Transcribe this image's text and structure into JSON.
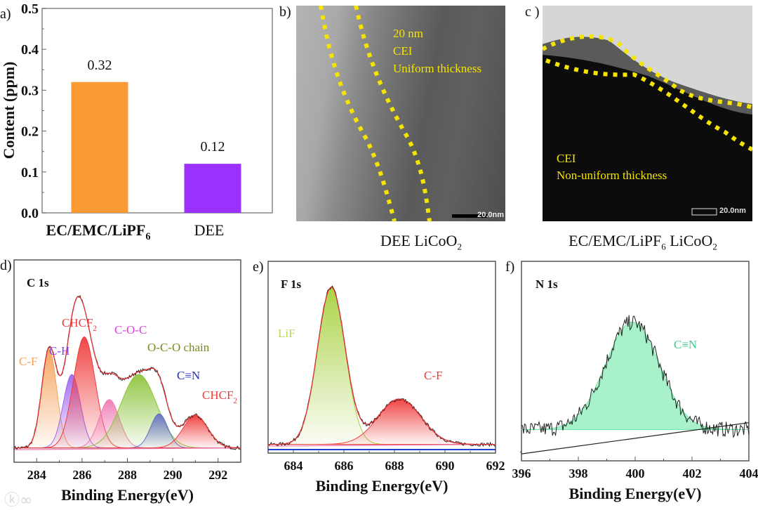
{
  "chart_data": [
    {
      "panel": "a)",
      "type": "bar",
      "categories": [
        "EC/EMC/LiPF6",
        "DEE"
      ],
      "category_labels": [
        {
          "main": "EC/EMC/LiPF",
          "sub": "6"
        },
        {
          "main": "DEE",
          "sub": ""
        }
      ],
      "values": [
        0.32,
        0.12
      ],
      "data_labels": [
        "0.32",
        "0.12"
      ],
      "colors": [
        "#fb9a33",
        "#9b30ff"
      ],
      "ylabel": "Content (ppm)",
      "ylim": [
        0,
        0.5
      ],
      "yticks": [
        "0.0",
        "0.1",
        "0.2",
        "0.3",
        "0.4",
        "0.5"
      ]
    },
    {
      "panel": "d)",
      "type": "line",
      "title": "C 1s",
      "xlabel": "Binding Energy(eV)",
      "xlim": [
        283,
        293
      ],
      "ylim": [
        -0.08,
        1.05
      ],
      "xticks": [
        284,
        286,
        288,
        290,
        292
      ],
      "peaks": [
        {
          "label": "C-F",
          "center": 284.55,
          "height": 0.55,
          "sigma": 0.33,
          "color": "#f5a25a"
        },
        {
          "label": "C-H",
          "center": 285.55,
          "height": 0.41,
          "sigma": 0.38,
          "color": "#a066ee"
        },
        {
          "label": "CHCF2",
          "center": 286.1,
          "height": 0.62,
          "sigma": 0.48,
          "color": "#f03c3c"
        },
        {
          "label": "C-O-C",
          "center": 287.2,
          "height": 0.27,
          "sigma": 0.45,
          "color": "#f07ab4"
        },
        {
          "label": "O-C-O chain",
          "center": 288.5,
          "height": 0.41,
          "sigma": 0.78,
          "color": "#8cc43c"
        },
        {
          "label": "C≡N",
          "center": 289.4,
          "height": 0.19,
          "sigma": 0.38,
          "color": "#6670c8"
        },
        {
          "label": "CHCF2",
          "center": 291.0,
          "height": 0.18,
          "sigma": 0.55,
          "color": "#f03c3c"
        }
      ],
      "annotations": [
        {
          "text": "C-F",
          "color": "#f5a25a"
        },
        {
          "text": "C-H",
          "color": "#8a3cf0"
        },
        {
          "text": "CHCF",
          "sub": "2",
          "color": "#f03c3c"
        },
        {
          "text": "C-O-C",
          "color": "#e040e0"
        },
        {
          "text": "O-C-O chain",
          "color": "#7a8a1a"
        },
        {
          "text": "C≡N",
          "color": "#2830b0"
        },
        {
          "text": "CHCF",
          "sub": "2",
          "color": "#f03c3c"
        }
      ]
    },
    {
      "panel": "e)",
      "type": "line",
      "title": "F 1s",
      "xlabel": "Binding Energy(eV)",
      "xlim": [
        683,
        692
      ],
      "ylim": [
        -0.05,
        1.05
      ],
      "xticks": [
        684,
        686,
        688,
        690,
        692
      ],
      "peaks": [
        {
          "label": "LiF",
          "center": 685.5,
          "height": 0.9,
          "sigma": 0.55,
          "color": "#a8d040"
        },
        {
          "label": "C-F",
          "center": 688.2,
          "height": 0.26,
          "sigma": 0.85,
          "color": "#f03c3c"
        }
      ],
      "annotations": [
        {
          "text": "LiF",
          "color": "#b8d860"
        },
        {
          "text": "C-F",
          "color": "#f03c3c"
        }
      ]
    },
    {
      "panel": "f)",
      "type": "line",
      "title": "N 1s",
      "xlabel": "Binding Energy(eV)",
      "xlim": [
        396,
        404
      ],
      "ylim": [
        -0.1,
        1.05
      ],
      "xticks": [
        396,
        398,
        400,
        402,
        404
      ],
      "peaks": [
        {
          "label": "C≡N",
          "center": 399.9,
          "height": 0.62,
          "sigma": 0.95,
          "color": "#6ee8a8"
        }
      ],
      "annotations": [
        {
          "text": "C≡N",
          "color": "#3ccf8a"
        }
      ]
    }
  ],
  "tem_b": {
    "panel": "b)",
    "labels": [
      "20 nm",
      "CEI",
      "Uniform thickness"
    ],
    "scale_bar": "20.0nm",
    "caption": {
      "main": "DEE LiCoO",
      "sub": "2"
    }
  },
  "tem_c": {
    "panel": "c )",
    "labels": [
      "CEI",
      "Non-uniform thickness"
    ],
    "scale_bar": "20.0nm",
    "caption": {
      "main": "EC/EMC/LiPF",
      "sub": "6",
      "main2": " LiCoO",
      "sub2": "2"
    }
  },
  "watermark": "大数据观"
}
